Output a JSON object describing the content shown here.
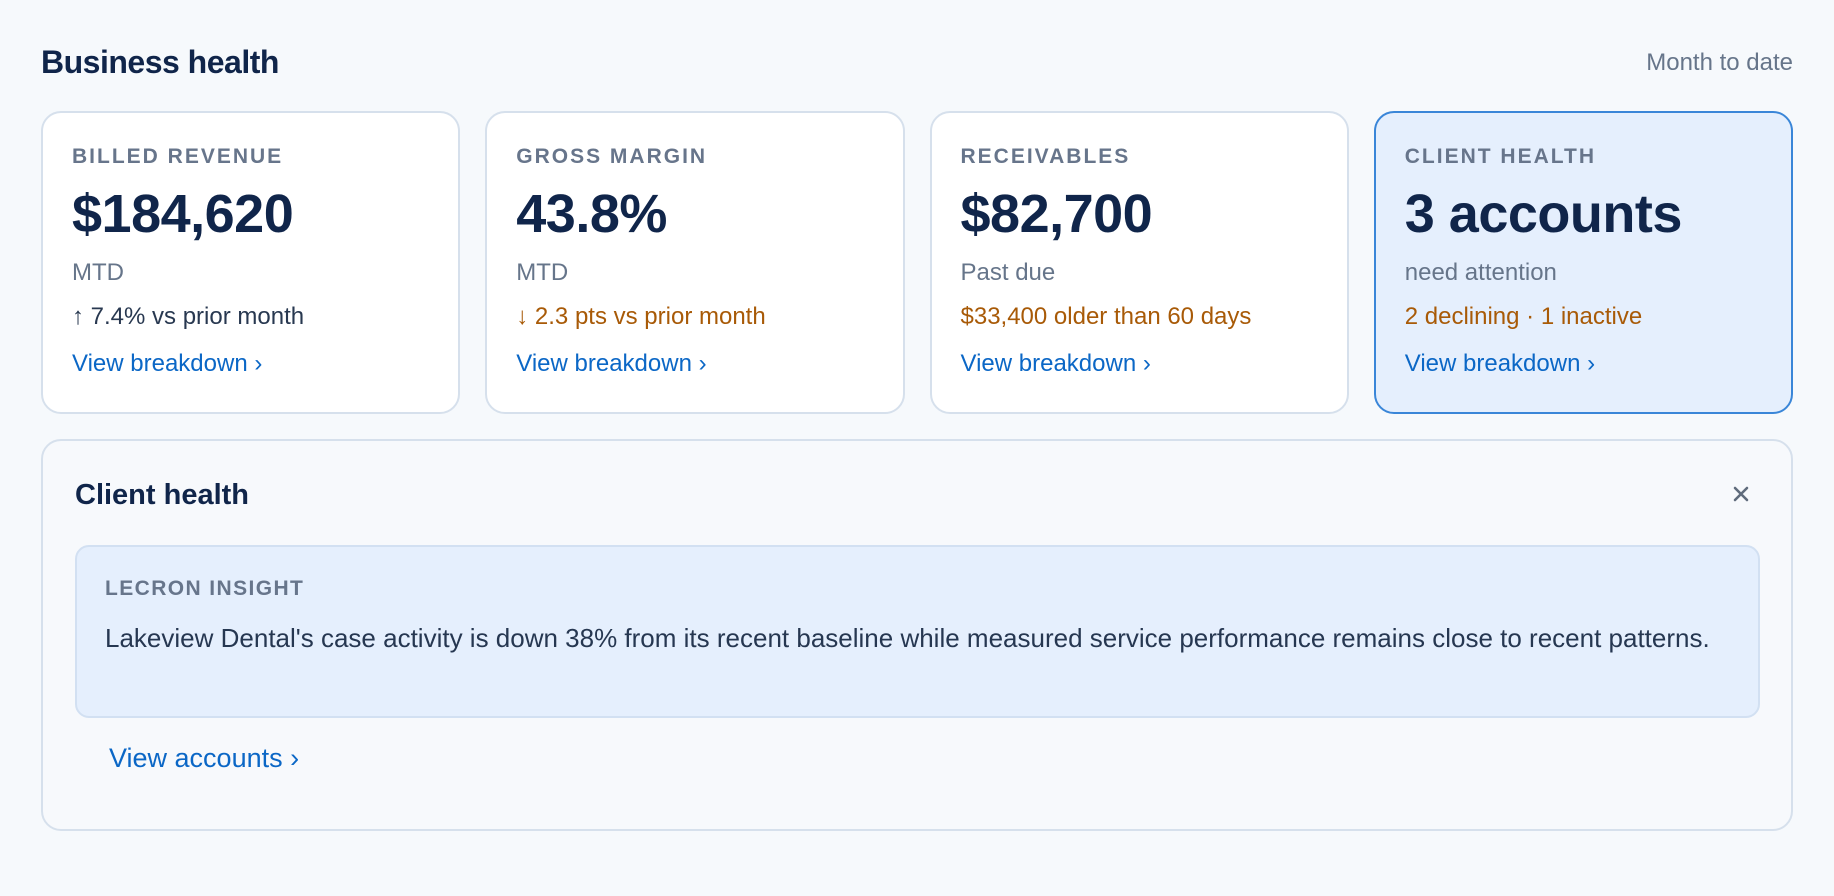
{
  "header": {
    "title": "Business health",
    "period": "Month to date"
  },
  "cards": [
    {
      "label": "BILLED REVENUE",
      "value": "$184,620",
      "subtitle": "MTD",
      "trend": "↑ 7.4% vs prior month",
      "link": "View breakdown ›"
    },
    {
      "label": "GROSS MARGIN",
      "value": "43.8%",
      "subtitle": "MTD",
      "trend": "↓ 2.3 pts vs prior month",
      "link": "View breakdown ›"
    },
    {
      "label": "RECEIVABLES",
      "value": "$82,700",
      "subtitle": "Past due",
      "trend": "$33,400 older than 60 days",
      "link": "View breakdown ›"
    },
    {
      "label": "CLIENT HEALTH",
      "value": "3 accounts",
      "subtitle": "need attention",
      "trend": "2 declining · 1 inactive",
      "link": "View breakdown ›"
    }
  ],
  "detail": {
    "title": "Client health",
    "insight_label": "LECRON INSIGHT",
    "insight_text": "Lakeview Dental's case activity is down 38% from its recent baseline while measured service performance remains close to recent patterns.",
    "accounts_link": "View accounts ›"
  },
  "icons": {
    "close": "close-icon"
  },
  "colors": {
    "background": "#f6f9fc",
    "primary_text": "#10254a",
    "muted_text": "#66758a",
    "link": "#0b67c6",
    "warning": "#a85a07",
    "selected_border": "#3a86d8",
    "selected_background": "#e5effd"
  }
}
